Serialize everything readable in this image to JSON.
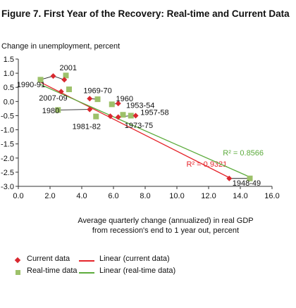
{
  "figure_title": "Figure 7. First Year of the Recovery: Real-time and Current Data",
  "y_axis_title": "Change in unemployment, percent",
  "x_axis_title_line1": "Average quarterly change (annualized) in real GDP",
  "x_axis_title_line2": "from recession's end to 1 year out, percent",
  "legend": {
    "current": "Current data",
    "realtime": "Real-time data",
    "linear_current": "Linear (current data)",
    "linear_realtime": "Linear (real-time data)"
  },
  "colors": {
    "current": "#d9282f",
    "realtime": "#9dc16a",
    "trend_current": "#e5242a",
    "trend_realtime": "#5cab3c"
  },
  "chart_data": {
    "type": "scatter",
    "xlim": [
      0,
      16
    ],
    "ylim": [
      -3,
      1.5
    ],
    "x_ticks": [
      "0.0",
      "2.0",
      "4.0",
      "6.0",
      "8.0",
      "10.0",
      "12.0",
      "14.0",
      "16.0"
    ],
    "y_ticks": [
      "1.5",
      "1.0",
      "0.5",
      "0.0",
      "-0.5",
      "-1.0",
      "-1.5",
      "-2.0",
      "-2.5",
      "-3.0"
    ],
    "series": [
      {
        "name": "Current data",
        "points": [
          {
            "x": 2.2,
            "y": 0.9
          },
          {
            "x": 2.9,
            "y": 0.77
          },
          {
            "x": 2.7,
            "y": 0.35
          },
          {
            "x": 4.5,
            "y": 0.1
          },
          {
            "x": 6.3,
            "y": -0.07
          },
          {
            "x": 4.5,
            "y": -0.28
          },
          {
            "x": 5.8,
            "y": -0.52
          },
          {
            "x": 6.3,
            "y": -0.55
          },
          {
            "x": 7.4,
            "y": -0.5
          },
          {
            "x": 13.3,
            "y": -2.72
          }
        ]
      },
      {
        "name": "Real-time data",
        "points": [
          {
            "x": 1.4,
            "y": 0.77
          },
          {
            "x": 3.0,
            "y": 0.92
          },
          {
            "x": 3.2,
            "y": 0.43
          },
          {
            "x": 5.0,
            "y": 0.08
          },
          {
            "x": 5.9,
            "y": -0.1
          },
          {
            "x": 2.5,
            "y": -0.3
          },
          {
            "x": 4.9,
            "y": -0.53
          },
          {
            "x": 6.6,
            "y": -0.47
          },
          {
            "x": 7.1,
            "y": -0.5
          },
          {
            "x": 14.6,
            "y": -2.72
          }
        ]
      }
    ],
    "trendlines": [
      {
        "name": "Linear (current data)",
        "from": [
          1.4,
          0.68
        ],
        "to": [
          13.4,
          -2.72
        ],
        "r2_label": "R² = 0.9321",
        "r2_at": [
          10.6,
          -2.3
        ]
      },
      {
        "name": "Linear (real-time data)",
        "from": [
          1.4,
          0.6
        ],
        "to": [
          14.6,
          -2.67
        ],
        "r2_label": "R² = 0.8566",
        "r2_at": [
          12.9,
          -1.9
        ]
      }
    ],
    "annotations": [
      {
        "text": "2001",
        "at": [
          2.6,
          1.2
        ],
        "anchor": "start"
      },
      {
        "text": "1990-91",
        "at": [
          -0.1,
          0.6
        ],
        "anchor": "start"
      },
      {
        "text": "2007-09",
        "at": [
          1.3,
          0.13
        ],
        "anchor": "start"
      },
      {
        "text": "1969-70",
        "at": [
          5.0,
          0.39
        ],
        "anchor": "middle"
      },
      {
        "text": "1960",
        "at": [
          6.7,
          0.11
        ],
        "anchor": "middle"
      },
      {
        "text": "1953-54",
        "at": [
          6.8,
          -0.13
        ],
        "anchor": "start"
      },
      {
        "text": "1980",
        "at": [
          1.5,
          -0.31
        ],
        "anchor": "start"
      },
      {
        "text": "1957-58",
        "at": [
          7.7,
          -0.38
        ],
        "anchor": "start"
      },
      {
        "text": "1981-82",
        "at": [
          4.3,
          -0.88
        ],
        "anchor": "middle"
      },
      {
        "text": "1973-75",
        "at": [
          6.7,
          -0.84
        ],
        "anchor": "start"
      },
      {
        "text": "1948-49",
        "at": [
          13.5,
          -2.88
        ],
        "anchor": "start"
      }
    ],
    "connectors": [
      {
        "from": [
          1.4,
          0.77
        ],
        "to": [
          2.2,
          0.9
        ]
      },
      {
        "from": [
          2.9,
          0.77
        ],
        "to": [
          2.2,
          0.9
        ]
      },
      {
        "from": [
          2.5,
          -0.3
        ],
        "to": [
          4.5,
          -0.28
        ]
      },
      {
        "from": [
          5.0,
          0.08
        ],
        "to": [
          4.5,
          0.1
        ]
      },
      {
        "from": [
          5.9,
          -0.1
        ],
        "to": [
          6.3,
          -0.07
        ]
      },
      {
        "from": [
          13.3,
          -2.72
        ],
        "to": [
          14.6,
          -2.72
        ]
      },
      {
        "from": [
          6.3,
          -0.55
        ],
        "to": [
          7.1,
          -0.5
        ]
      }
    ]
  }
}
